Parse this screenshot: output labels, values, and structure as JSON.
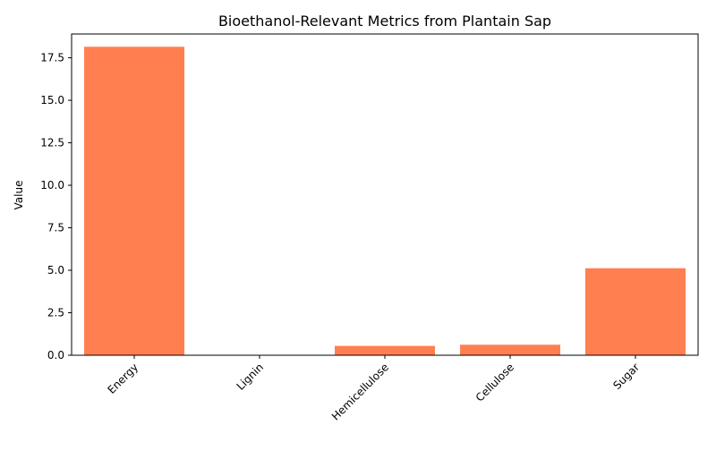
{
  "chart_data": {
    "type": "bar",
    "title": "Bioethanol-Relevant Metrics from Plantain Sap",
    "xlabel": "",
    "ylabel": "Value",
    "categories": [
      "Energy",
      "Lignin",
      "Hemicellulose",
      "Cellulose",
      "Sugar"
    ],
    "values": [
      18.15,
      0.02,
      0.55,
      0.62,
      5.12
    ],
    "ylim": [
      0,
      18.9
    ],
    "yticks": [
      "0.0",
      "2.5",
      "5.0",
      "7.5",
      "10.0",
      "12.5",
      "15.0",
      "17.5"
    ],
    "bar_color": "#ff7f50",
    "grid": false,
    "legend": "none"
  }
}
